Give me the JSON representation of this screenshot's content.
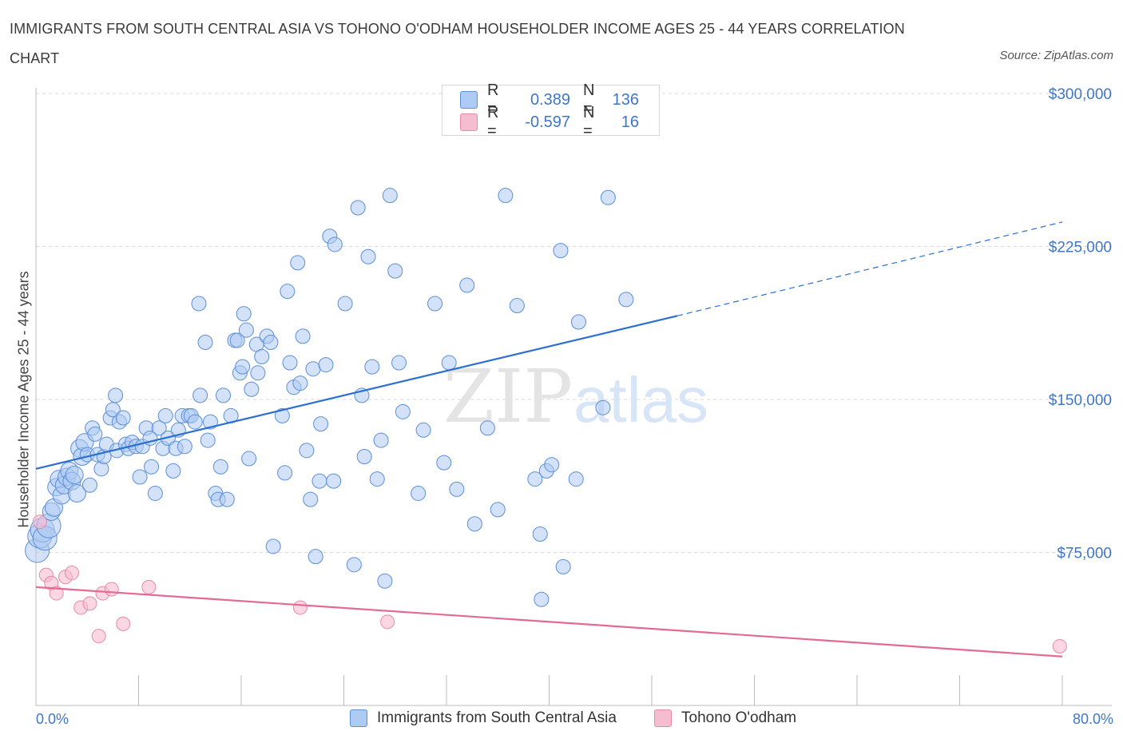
{
  "title": "IMMIGRANTS FROM SOUTH CENTRAL ASIA VS TOHONO O'ODHAM HOUSEHOLDER INCOME AGES 25 - 44 YEARS CORRELATION CHART",
  "source": "Source: ZipAtlas.com",
  "watermark": {
    "zip": "ZIP",
    "atlas": "atlas"
  },
  "legend_top": [
    {
      "r_label": "R =",
      "r_value": "0.389",
      "n_label": "N =",
      "n_value": "136"
    },
    {
      "r_label": "R =",
      "r_value": "-0.597",
      "n_label": "N =",
      "n_value": "16"
    }
  ],
  "colors": {
    "blue_fill": "#aecbf3",
    "blue_stroke": "#5b8fd6",
    "blue_line": "#2a6fd1",
    "pink_fill": "#f6bcd0",
    "pink_stroke": "#e68aa8",
    "pink_line": "#e26a94",
    "tick_label": "#3f76c8",
    "grid": "#d9d9d9"
  },
  "chart_data": {
    "type": "scatter",
    "xlabel": "",
    "ylabel": "Householder Income Ages 25 - 44 years",
    "xlim": [
      0,
      80
    ],
    "ylim": [
      0,
      300000
    ],
    "x_tick_labels": {
      "min": "0.0%",
      "max": "80.0%"
    },
    "y_ticks": [
      {
        "value": 75000,
        "label": "$75,000"
      },
      {
        "value": 150000,
        "label": "$150,000"
      },
      {
        "value": 225000,
        "label": "$225,000"
      },
      {
        "value": 300000,
        "label": "$300,000"
      }
    ],
    "series": [
      {
        "name": "Immigrants from South Central Asia",
        "trend": {
          "x0": 0,
          "y0": 116000,
          "x1": 50,
          "y1": 191000,
          "dash_to_x": 80,
          "dash_to_y": 237000
        },
        "points": [
          [
            0.1,
            76000
          ],
          [
            0.3,
            83000
          ],
          [
            0.5,
            86000
          ],
          [
            0.7,
            82000
          ],
          [
            1.0,
            88000
          ],
          [
            1.2,
            95000
          ],
          [
            1.4,
            97000
          ],
          [
            1.6,
            107000
          ],
          [
            1.8,
            111000
          ],
          [
            2.0,
            103000
          ],
          [
            2.2,
            108000
          ],
          [
            2.4,
            112000
          ],
          [
            2.6,
            115000
          ],
          [
            2.8,
            110000
          ],
          [
            3.0,
            113000
          ],
          [
            3.2,
            104000
          ],
          [
            3.4,
            126000
          ],
          [
            3.6,
            122000
          ],
          [
            3.8,
            129000
          ],
          [
            4.0,
            123000
          ],
          [
            4.2,
            108000
          ],
          [
            4.4,
            136000
          ],
          [
            4.6,
            133000
          ],
          [
            4.8,
            123000
          ],
          [
            5.1,
            116000
          ],
          [
            5.3,
            122000
          ],
          [
            5.5,
            128000
          ],
          [
            5.8,
            141000
          ],
          [
            6.0,
            145000
          ],
          [
            6.2,
            152000
          ],
          [
            6.3,
            125000
          ],
          [
            6.5,
            139000
          ],
          [
            6.8,
            141000
          ],
          [
            7.0,
            128000
          ],
          [
            7.2,
            126000
          ],
          [
            7.5,
            129000
          ],
          [
            7.8,
            127000
          ],
          [
            8.1,
            112000
          ],
          [
            8.3,
            127000
          ],
          [
            8.6,
            136000
          ],
          [
            8.9,
            131000
          ],
          [
            9.0,
            117000
          ],
          [
            9.3,
            104000
          ],
          [
            9.6,
            136000
          ],
          [
            9.9,
            126000
          ],
          [
            10.1,
            142000
          ],
          [
            10.3,
            131000
          ],
          [
            10.7,
            115000
          ],
          [
            10.9,
            126000
          ],
          [
            11.1,
            135000
          ],
          [
            11.4,
            142000
          ],
          [
            11.6,
            127000
          ],
          [
            11.9,
            142000
          ],
          [
            12.1,
            142000
          ],
          [
            12.4,
            139000
          ],
          [
            12.7,
            197000
          ],
          [
            12.8,
            152000
          ],
          [
            13.2,
            178000
          ],
          [
            13.4,
            130000
          ],
          [
            13.6,
            139000
          ],
          [
            14.0,
            104000
          ],
          [
            14.2,
            101000
          ],
          [
            14.4,
            117000
          ],
          [
            14.6,
            152000
          ],
          [
            14.9,
            101000
          ],
          [
            15.2,
            142000
          ],
          [
            15.5,
            179000
          ],
          [
            15.7,
            179000
          ],
          [
            15.9,
            163000
          ],
          [
            16.1,
            166000
          ],
          [
            16.2,
            192000
          ],
          [
            16.4,
            184000
          ],
          [
            16.6,
            121000
          ],
          [
            16.8,
            155000
          ],
          [
            17.2,
            177000
          ],
          [
            17.3,
            163000
          ],
          [
            17.6,
            171000
          ],
          [
            18.0,
            181000
          ],
          [
            18.3,
            178000
          ],
          [
            18.5,
            78000
          ],
          [
            19.2,
            142000
          ],
          [
            19.4,
            114000
          ],
          [
            19.6,
            203000
          ],
          [
            19.8,
            168000
          ],
          [
            20.1,
            156000
          ],
          [
            20.4,
            217000
          ],
          [
            20.6,
            158000
          ],
          [
            20.8,
            181000
          ],
          [
            21.1,
            125000
          ],
          [
            21.4,
            101000
          ],
          [
            21.6,
            165000
          ],
          [
            21.8,
            73000
          ],
          [
            22.1,
            110000
          ],
          [
            22.2,
            138000
          ],
          [
            22.6,
            167000
          ],
          [
            22.9,
            230000
          ],
          [
            23.2,
            110000
          ],
          [
            23.3,
            226000
          ],
          [
            24.1,
            197000
          ],
          [
            24.8,
            69000
          ],
          [
            25.1,
            244000
          ],
          [
            25.4,
            152000
          ],
          [
            25.6,
            122000
          ],
          [
            25.9,
            220000
          ],
          [
            26.2,
            166000
          ],
          [
            26.6,
            111000
          ],
          [
            26.9,
            130000
          ],
          [
            27.2,
            61000
          ],
          [
            27.6,
            250000
          ],
          [
            28.0,
            213000
          ],
          [
            28.3,
            168000
          ],
          [
            28.6,
            144000
          ],
          [
            29.8,
            104000
          ],
          [
            30.2,
            135000
          ],
          [
            31.1,
            197000
          ],
          [
            31.8,
            119000
          ],
          [
            32.2,
            168000
          ],
          [
            32.8,
            106000
          ],
          [
            33.6,
            206000
          ],
          [
            34.2,
            89000
          ],
          [
            35.2,
            136000
          ],
          [
            36.6,
            250000
          ],
          [
            37.5,
            196000
          ],
          [
            39.3,
            84000
          ],
          [
            39.8,
            115000
          ],
          [
            40.2,
            118000
          ],
          [
            40.9,
            223000
          ],
          [
            41.1,
            68000
          ],
          [
            42.1,
            111000
          ],
          [
            42.3,
            188000
          ],
          [
            44.2,
            146000
          ],
          [
            44.6,
            249000
          ],
          [
            46.0,
            199000
          ],
          [
            38.9,
            111000
          ],
          [
            36.0,
            96000
          ],
          [
            39.4,
            52000
          ]
        ]
      },
      {
        "name": "Tohono O'odham",
        "trend": {
          "x0": 0,
          "y0": 58000,
          "x1": 80,
          "y1": 24000
        },
        "points": [
          [
            0.3,
            90000
          ],
          [
            0.8,
            64000
          ],
          [
            1.2,
            60000
          ],
          [
            1.6,
            55000
          ],
          [
            2.3,
            63000
          ],
          [
            2.8,
            65000
          ],
          [
            3.5,
            48000
          ],
          [
            4.2,
            50000
          ],
          [
            4.9,
            34000
          ],
          [
            5.2,
            55000
          ],
          [
            5.9,
            57000
          ],
          [
            6.8,
            40000
          ],
          [
            8.8,
            58000
          ],
          [
            20.6,
            48000
          ],
          [
            27.4,
            41000
          ],
          [
            79.8,
            29000
          ]
        ]
      }
    ],
    "legend": "bottom-center",
    "grid": true
  }
}
